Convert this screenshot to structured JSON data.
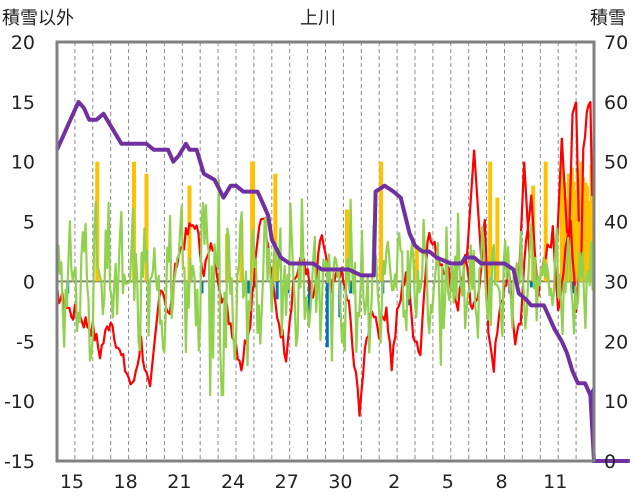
{
  "chart_data": {
    "type": "line",
    "title": "上川",
    "left_axis_label": "積雪以外",
    "right_axis_label": "積雪",
    "left_ylim": [
      -15,
      20
    ],
    "left_yticks": [
      20,
      15,
      10,
      5,
      0,
      -5,
      -10,
      -15
    ],
    "right_ylim": [
      0,
      70
    ],
    "right_yticks": [
      70,
      60,
      50,
      40,
      30,
      20,
      10,
      0
    ],
    "x_tick_labels": [
      "15",
      "18",
      "21",
      "24",
      "27",
      "30",
      "2",
      "5",
      "8",
      "11"
    ],
    "grid": "vertical dashed daily lines",
    "colors": {
      "temperature": "#ff0000",
      "wind": "#92d050",
      "snowfall": "#ffc000",
      "precipitation": "#0070c0",
      "snow_depth": "#7030a0",
      "frame": "#808080"
    },
    "series": [
      {
        "key": "snow_depth",
        "axis": "right",
        "x": [
          0,
          0.3,
          0.6,
          0.9,
          1.2,
          1.5,
          1.8,
          2.2,
          2.6,
          3.0,
          3.4,
          3.6,
          4.2,
          5.0,
          5.4,
          6.2,
          6.5,
          6.8,
          7.2,
          7.4,
          7.8,
          8.2,
          8.8,
          9.3,
          9.7,
          10.0,
          10.4,
          10.8,
          11.2,
          11.5,
          11.8,
          12.0,
          12.5,
          13.0,
          14.0,
          14.3,
          14.8,
          15.2,
          15.8,
          16.3,
          17.0,
          17.7,
          17.8,
          18.3,
          18.8,
          19.2,
          19.7,
          20.0,
          20.4,
          20.8,
          21.2,
          22.0,
          22.4,
          22.6,
          22.8,
          23.3,
          23.7,
          24.0,
          24.5,
          25.0,
          25.5,
          25.8,
          26.2,
          26.5,
          26.8,
          27.2,
          27.5,
          27.8,
          28.2,
          28.5,
          28.8,
          29.1,
          29.5,
          29.8,
          30.0
        ],
        "y": [
          52,
          54,
          56,
          58,
          60,
          59,
          57,
          57,
          58,
          56,
          54,
          53,
          53,
          53,
          52,
          52,
          50,
          51,
          53,
          52,
          52,
          48,
          47,
          44,
          46,
          46,
          45,
          45,
          45,
          43,
          41,
          37,
          34,
          33,
          33,
          33,
          32,
          32,
          32,
          32,
          31,
          31,
          45,
          46,
          45,
          44,
          38,
          36,
          35,
          35,
          34,
          33,
          33,
          33,
          34,
          34,
          33,
          33,
          33,
          33,
          32,
          28,
          27,
          26,
          26,
          26,
          24,
          22,
          20,
          18,
          15,
          13,
          13,
          11,
          12
        ],
        "y_tail": [
          0,
          0,
          0,
          0
        ],
        "x_tail": [
          30.0,
          30.3,
          31.5,
          32.0
        ]
      }
    ]
  }
}
